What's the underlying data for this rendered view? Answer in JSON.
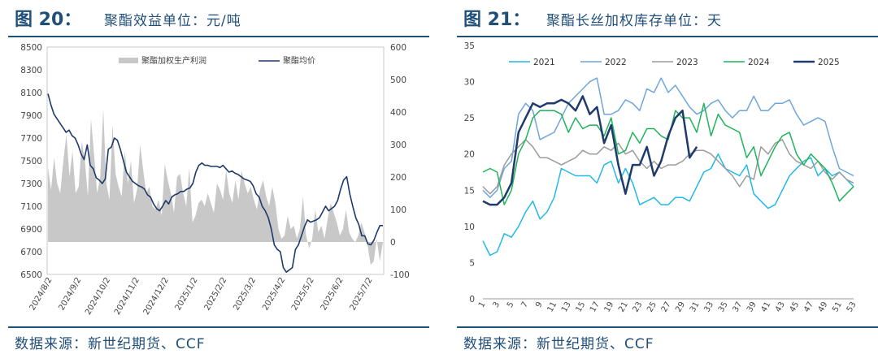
{
  "charts": [
    {
      "figure_label": "图 20：",
      "title": "聚酯效益单位：元/吨",
      "source": "数据来源：新世纪期货、CCF"
    },
    {
      "figure_label": "图 21：",
      "title": "聚酯长丝加权库存单位：天",
      "source": "数据来源：新世纪期货、CCF"
    }
  ],
  "chart_data": [
    {
      "type": "area+line",
      "title": "聚酯效益单位：元/吨",
      "y_left_ticks": [
        "8500",
        "8300",
        "8100",
        "7900",
        "7700",
        "7500",
        "7300",
        "7100",
        "6900",
        "6700",
        "6500"
      ],
      "y_left_range": [
        6500,
        8500
      ],
      "y_right_ticks": [
        "600",
        "500",
        "400",
        "300",
        "200",
        "100",
        "0",
        "-100"
      ],
      "y_right_range": [
        -100,
        600
      ],
      "x_ticks": [
        "2024/8/2",
        "2024/9/2",
        "2024/10/2",
        "2024/11/2",
        "2024/12/2",
        "2025/1/2",
        "2025/2/2",
        "2025/3/2",
        "2025/4/2",
        "2025/5/2",
        "2025/6/2",
        "2025/7/2"
      ],
      "legend": [
        "聚酯加权生产利润",
        "聚酯均价"
      ],
      "colors": {
        "profit": "#c8c8c8",
        "price": "#1f3a6b"
      },
      "series": [
        {
          "name": "聚酯加权生产利润",
          "axis": "right",
          "values": [
            230,
            160,
            260,
            180,
            150,
            250,
            330,
            200,
            280,
            150,
            170,
            310,
            250,
            140,
            380,
            270,
            150,
            200,
            410,
            180,
            130,
            360,
            210,
            170,
            140,
            280,
            180,
            250,
            120,
            160,
            300,
            220,
            150,
            170,
            110,
            100,
            130,
            80,
            240,
            190,
            150,
            90,
            200,
            210,
            150,
            110,
            230,
            60,
            80,
            120,
            130,
            110,
            150,
            120,
            90,
            180,
            160,
            130,
            220,
            150,
            120,
            190,
            130,
            220,
            180,
            150,
            170,
            130,
            100,
            160,
            190,
            140,
            110,
            170,
            120,
            40,
            10,
            20,
            80,
            40,
            50,
            10,
            40,
            140,
            20,
            -20,
            10,
            100,
            30,
            50,
            10,
            70,
            120,
            90,
            60,
            20,
            40,
            100,
            30,
            10,
            0,
            20,
            60,
            30,
            -10,
            -70,
            -60,
            10,
            -60,
            0
          ]
        },
        {
          "name": "聚酯均价",
          "axis": "left",
          "values": [
            8090,
            7990,
            7910,
            7870,
            7830,
            7790,
            7750,
            7770,
            7720,
            7700,
            7640,
            7560,
            7510,
            7640,
            7460,
            7430,
            7350,
            7330,
            7300,
            7340,
            7600,
            7620,
            7700,
            7680,
            7600,
            7500,
            7400,
            7360,
            7320,
            7300,
            7280,
            7270,
            7250,
            7200,
            7180,
            7120,
            7080,
            7060,
            7100,
            7150,
            7120,
            7180,
            7200,
            7210,
            7230,
            7230,
            7250,
            7260,
            7300,
            7400,
            7460,
            7480,
            7460,
            7460,
            7450,
            7450,
            7450,
            7440,
            7460,
            7430,
            7400,
            7410,
            7390,
            7380,
            7360,
            7340,
            7330,
            7320,
            7280,
            7210,
            7180,
            7100,
            7060,
            7000,
            6900,
            6760,
            6720,
            6700,
            6560,
            6520,
            6540,
            6560,
            6720,
            6760,
            6840,
            6920,
            6980,
            6960,
            6970,
            6980,
            7000,
            7050,
            7100,
            7060,
            7080,
            7100,
            7150,
            7250,
            7330,
            7360,
            7210,
            7100,
            7000,
            6940,
            6840,
            6840,
            6770,
            6760,
            6800,
            6870,
            6930,
            6930
          ]
        }
      ]
    },
    {
      "type": "line",
      "title": "聚酯长丝加权库存单位：天",
      "y_ticks": [
        "35",
        "30",
        "25",
        "20",
        "15",
        "10",
        "5",
        "0"
      ],
      "y_range": [
        0,
        35
      ],
      "x_ticks": [
        "1",
        "3",
        "5",
        "7",
        "9",
        "11",
        "13",
        "15",
        "17",
        "19",
        "21",
        "23",
        "25",
        "27",
        "29",
        "31",
        "33",
        "35",
        "37",
        "39",
        "41",
        "43",
        "45",
        "47",
        "49",
        "51",
        "53"
      ],
      "x_range": [
        1,
        53
      ],
      "legend": [
        "2021",
        "2022",
        "2023",
        "2024",
        "2025"
      ],
      "series": [
        {
          "name": "2021",
          "color": "#22b8e8",
          "width": 1.5,
          "values": [
            8,
            6,
            6.5,
            9,
            8.5,
            10,
            12,
            13.5,
            11,
            12,
            14,
            18,
            17.5,
            17,
            17,
            17,
            16,
            18.5,
            19,
            16,
            18,
            16,
            13,
            13.5,
            14,
            13,
            13,
            14,
            14,
            13.5,
            15.5,
            17.5,
            18,
            20,
            18,
            17.5,
            17,
            18.5,
            14.5,
            13.5,
            12.5,
            13,
            15,
            17,
            18,
            19,
            19.5,
            17,
            18,
            17,
            17.5,
            16.5,
            15.5
          ]
        },
        {
          "name": "2022",
          "color": "#6ea6db",
          "width": 1.5,
          "values": [
            15,
            14,
            15,
            18,
            19,
            25.5,
            27,
            26,
            22,
            22.5,
            23,
            25,
            27,
            28,
            29,
            30,
            30.5,
            25.5,
            25.5,
            26,
            27.5,
            27,
            26,
            29,
            28.5,
            30.5,
            28.5,
            29.5,
            28,
            26.5,
            25.5,
            26,
            27,
            27.5,
            26,
            25,
            26,
            26,
            28,
            26,
            26,
            27,
            27,
            27.5,
            25.5,
            24,
            24.5,
            25,
            24.5,
            21,
            18,
            17.5,
            17
          ]
        },
        {
          "name": "2023",
          "color": "#9c9c9c",
          "width": 1.5,
          "values": [
            15.5,
            14.5,
            15.5,
            18.5,
            20,
            21,
            22,
            21,
            19.5,
            19.5,
            19,
            18.5,
            19,
            19.5,
            20.5,
            20,
            20,
            21,
            20.5,
            21.5,
            20,
            20.5,
            19,
            18,
            19,
            18,
            18.5,
            18.5,
            19,
            20,
            20.5,
            20.5,
            20,
            19,
            18,
            17,
            15.5,
            17,
            16.5,
            21,
            20,
            21.5,
            22,
            20,
            19,
            18.5,
            18,
            19,
            17.5,
            16.5,
            17.5,
            16.5,
            16
          ]
        },
        {
          "name": "2024",
          "color": "#1fb45a",
          "width": 1.5,
          "values": [
            17.5,
            18,
            17.5,
            13,
            15,
            20,
            22,
            25,
            26,
            26,
            26,
            25.5,
            23,
            25,
            23.5,
            24,
            24,
            22.5,
            25,
            20,
            20.5,
            23,
            21.5,
            23.5,
            23.5,
            22.5,
            22,
            26,
            25,
            25,
            23,
            27,
            22.5,
            25.5,
            24,
            23.5,
            23,
            19.5,
            21,
            17,
            19,
            21,
            22.5,
            23,
            20,
            18.5,
            20,
            19,
            18,
            16,
            13.5,
            14.5,
            15.5
          ]
        },
        {
          "name": "2025",
          "color": "#1f3a6b",
          "width": 2.5,
          "values": [
            13.5,
            13,
            13,
            14,
            16,
            23,
            25,
            27,
            26.5,
            27,
            27,
            27.5,
            27,
            26,
            28,
            25.5,
            26.5,
            21.5,
            24,
            18.5,
            14.5,
            18.5,
            18.5,
            21,
            17,
            19,
            22.5,
            25,
            26,
            19.5,
            21
          ]
        }
      ]
    }
  ]
}
